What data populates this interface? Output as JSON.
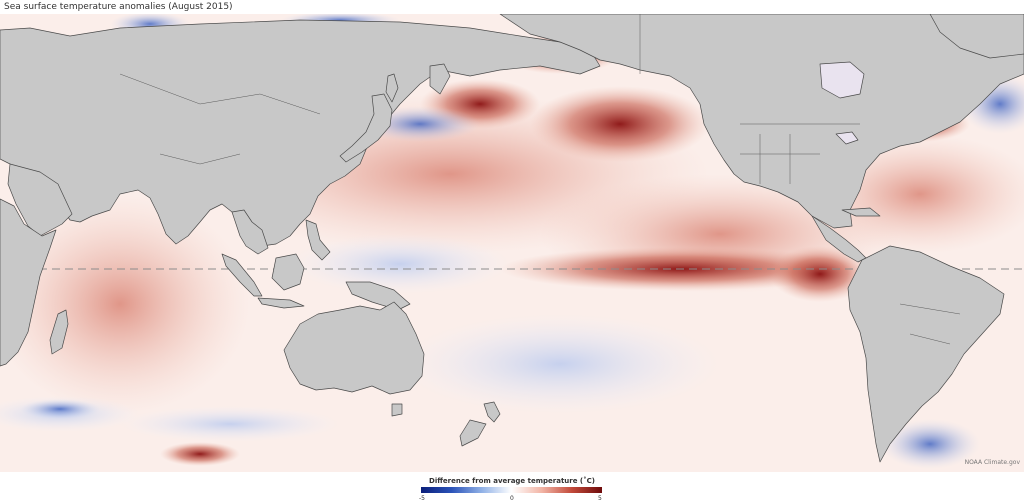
{
  "title": "Sea surface temperature anomalies (August 2015)",
  "legend": {
    "title": "Difference from average temperature (˚C)",
    "min_label": "-5",
    "mid_label": "0",
    "max_label": "5",
    "colors": {
      "cold": "#0b1f7a",
      "neutral": "#ffffff",
      "warm": "#6e0b0b"
    }
  },
  "credit": "NOAA Climate.gov",
  "colors": {
    "land": "#c8c8c8",
    "coast": "#4a4a4a",
    "ocean_base": "#fbeeea"
  }
}
